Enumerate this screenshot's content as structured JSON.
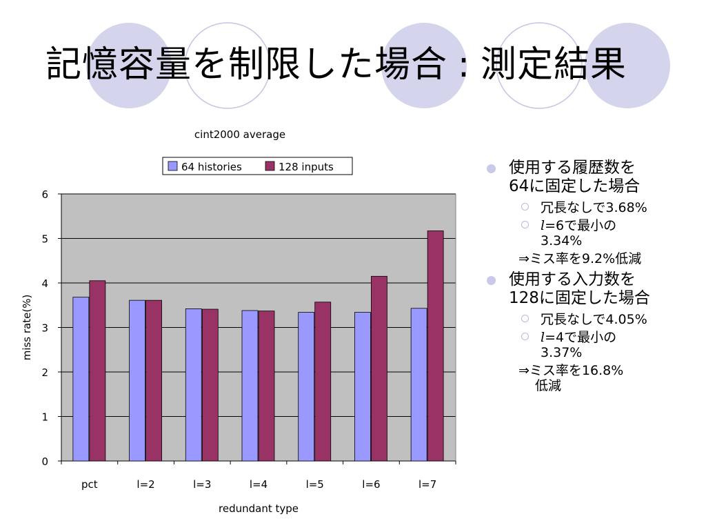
{
  "slide": {
    "title_main": "記憶容量を制限した場合",
    "title_sep": ":",
    "title_sub": "測定結果",
    "colors": {
      "deco_circle_fill": "#d4d4ec",
      "deco_circle_stroke": "#c4c4e4",
      "bullet": "#c9c9ea"
    }
  },
  "bullets": [
    {
      "text_lines": [
        "使用する履歴数を",
        "64に固定した場合"
      ],
      "items": [
        {
          "lines": [
            "冗長なしで3.68%"
          ]
        },
        {
          "var": "l",
          "rest_lines": [
            "=6で最小の",
            "3.34%"
          ]
        }
      ],
      "note_lines": [
        "⇒ミス率を9.2%低減"
      ]
    },
    {
      "text_lines": [
        "使用する入力数を",
        "128に固定した場合"
      ],
      "items": [
        {
          "lines": [
            "冗長なしで4.05%"
          ]
        },
        {
          "var": "l",
          "rest_lines": [
            "=4で最小の",
            "3.37%"
          ]
        }
      ],
      "note_lines": [
        "⇒ミス率を16.8%",
        "低減"
      ]
    }
  ],
  "chart_data": {
    "type": "bar",
    "title": "cint2000 average",
    "xlabel": "redundant type",
    "ylabel": "miss rate(%)",
    "ylim": [
      0,
      6
    ],
    "yticks": [
      0,
      1,
      2,
      3,
      4,
      5,
      6
    ],
    "grid": true,
    "legend_position": "top",
    "categories": [
      "pct",
      "l=2",
      "l=3",
      "l=4",
      "l=5",
      "l=6",
      "l=7"
    ],
    "series": [
      {
        "name": "64 histories",
        "color": "#9999ff",
        "values": [
          3.68,
          3.61,
          3.42,
          3.38,
          3.34,
          3.34,
          3.43
        ]
      },
      {
        "name": "128 inputs",
        "color": "#993366",
        "values": [
          4.05,
          3.61,
          3.41,
          3.37,
          3.57,
          4.15,
          5.17
        ]
      }
    ],
    "plot_background": "#c0c0c0"
  }
}
